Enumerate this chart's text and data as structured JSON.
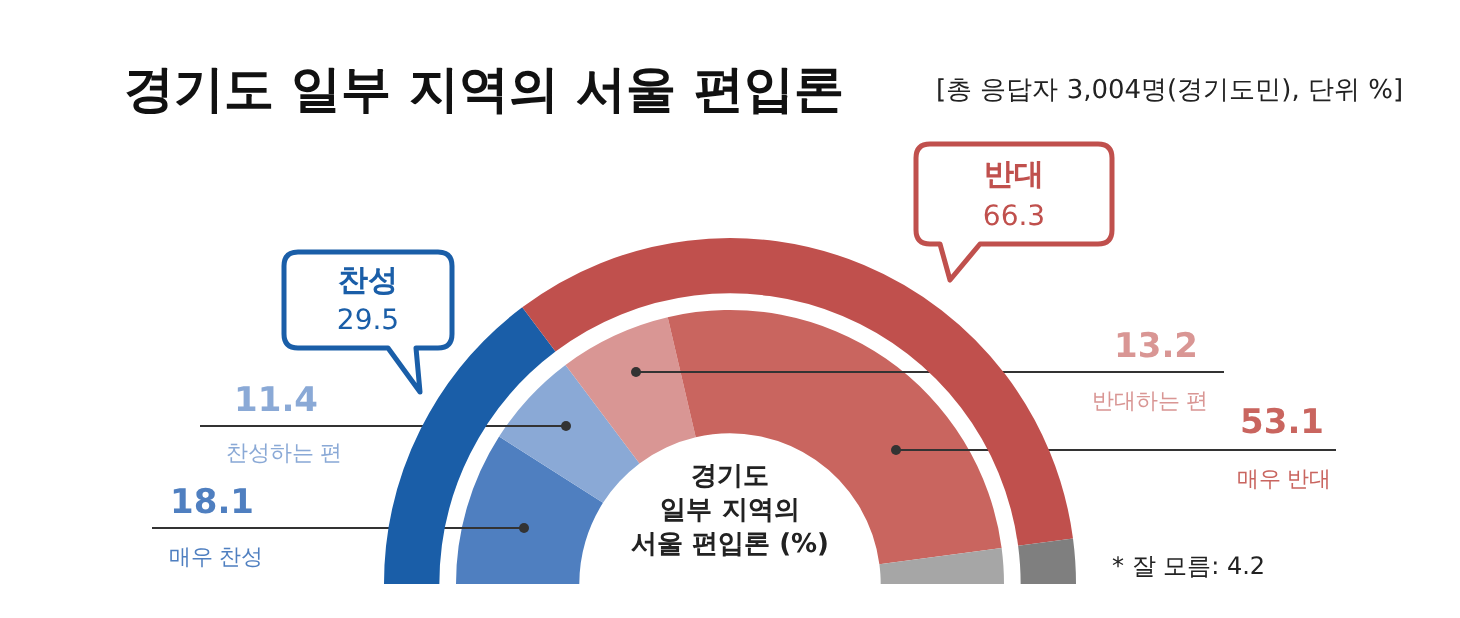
{
  "chart_data": [
    {
      "type": "donut",
      "title": "경기도 일부 지역의 서울 편입론",
      "subtitle": "[총 응답자 3,004명(경기도민), 단위 %]",
      "categories": [
        "찬성",
        "반대",
        null
      ],
      "values": [
        29.5,
        66.3,
        4.2
      ],
      "colors": [
        "#1a5ea8",
        "#c0504d",
        "#7f7f7f"
      ],
      "value_labels": [
        "29.5",
        "66.3",
        null
      ],
      "annotations": [
        "* 잘 모름: 4.2"
      ]
    },
    {
      "type": "donut",
      "categories": [
        "매우 찬성",
        "찬성하는 편",
        "반대하는 편",
        "매우 반대",
        null
      ],
      "values": [
        18.1,
        11.4,
        13.2,
        53.1,
        4.2
      ],
      "colors": [
        "#4f7fc0",
        "#8aa9d6",
        "#d99694",
        "#c9655f",
        "#a6a6a6"
      ],
      "value_labels": [
        "18.1",
        "11.4",
        "13.2",
        "53.1",
        null
      ],
      "annotations": [
        "경기도",
        "일부 지역의",
        "서울 편입론 (%)"
      ]
    }
  ]
}
